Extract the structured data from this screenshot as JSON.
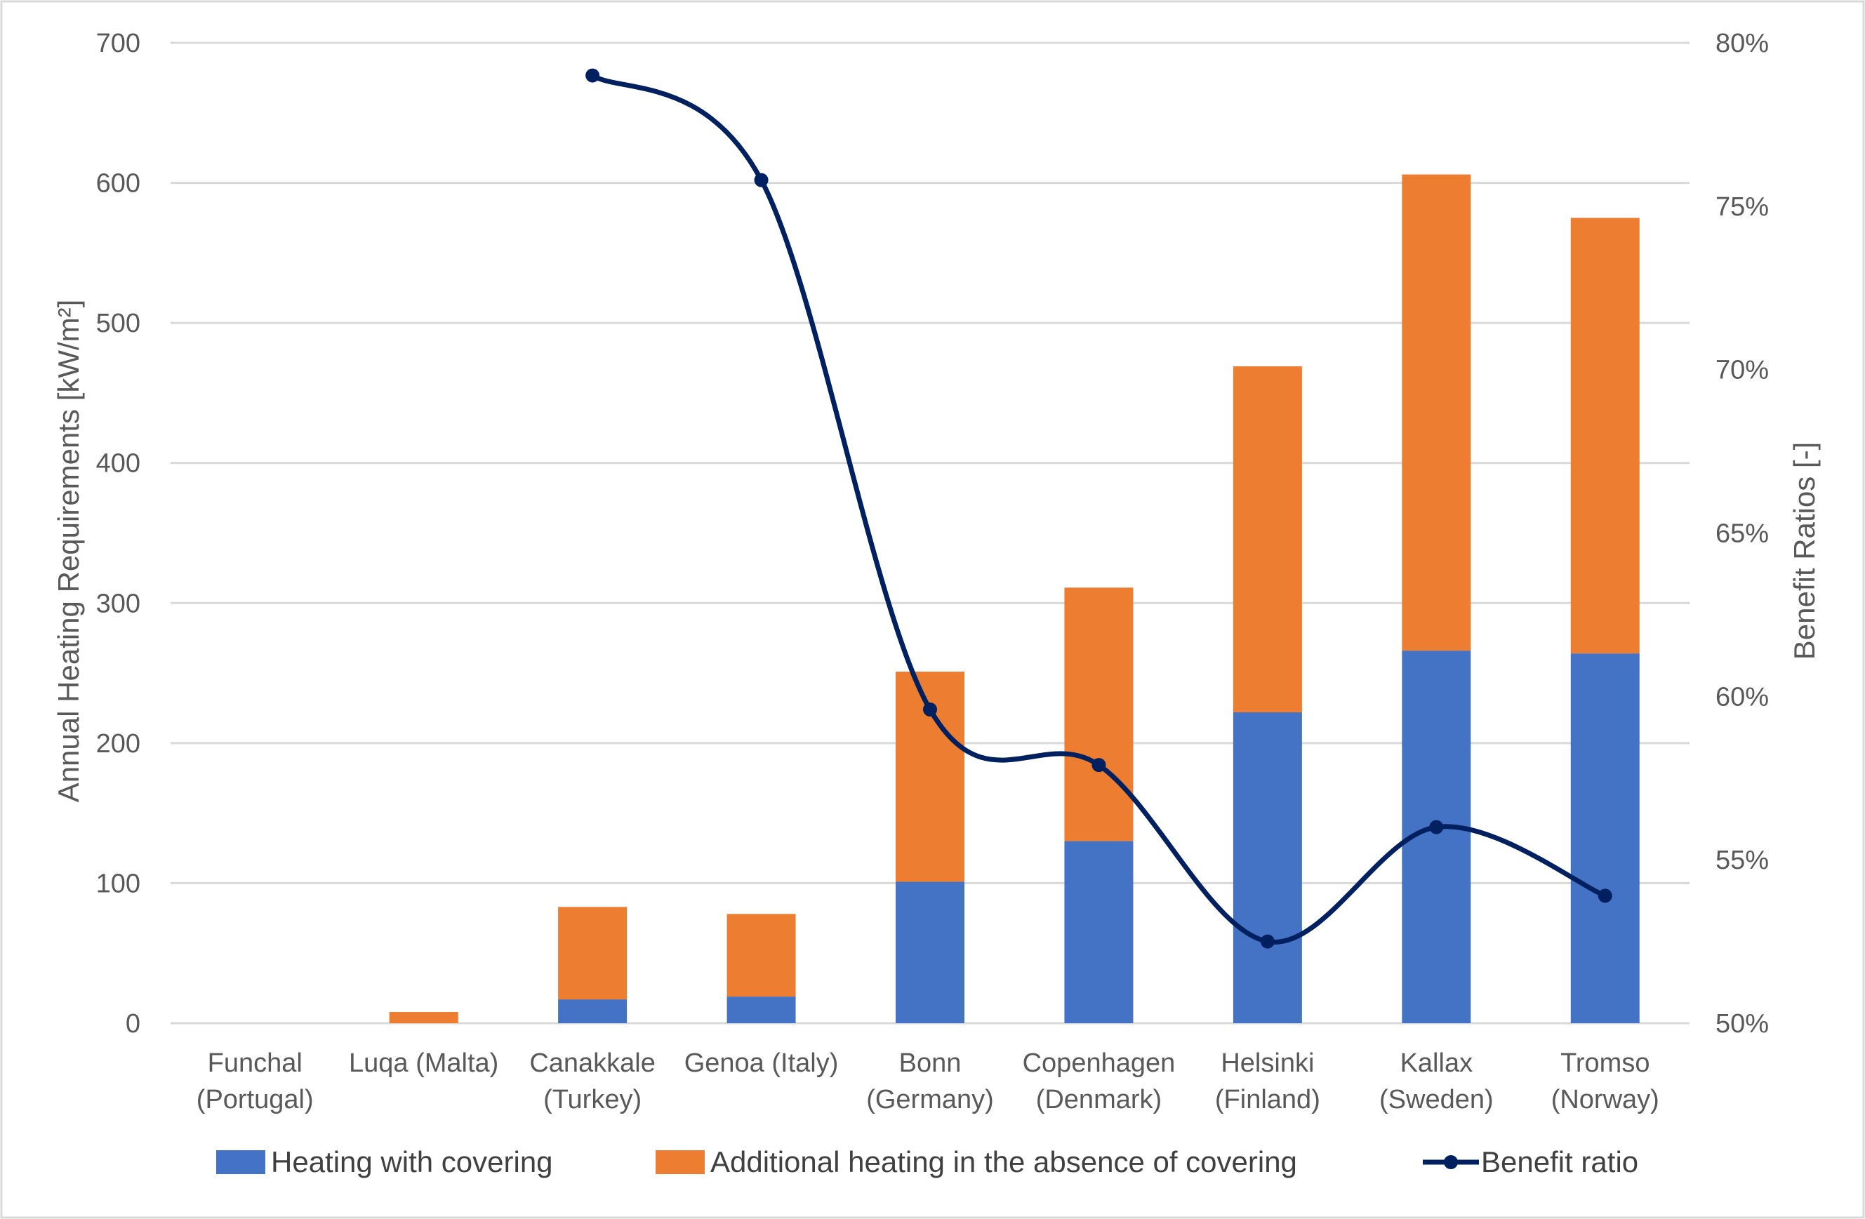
{
  "chart_data": {
    "type": "bar",
    "stacked": true,
    "categories": [
      [
        "Funchal",
        "(Portugal)"
      ],
      [
        "Luqa (Malta)"
      ],
      [
        "Canakkale",
        "(Turkey)"
      ],
      [
        "Genoa (Italy)"
      ],
      [
        "Bonn",
        "(Germany)"
      ],
      [
        "Copenhagen",
        "(Denmark)"
      ],
      [
        "Helsinki",
        "(Finland)"
      ],
      [
        "Kallax",
        "(Sweden)"
      ],
      [
        "Tromso",
        "(Norway)"
      ]
    ],
    "series": [
      {
        "name": "Heating with covering",
        "color": "#4472C4",
        "axis": "left",
        "values": [
          0,
          0,
          17,
          19,
          101,
          130,
          222,
          266,
          264
        ]
      },
      {
        "name": "Additional heating in the absence of covering",
        "color": "#ED7D31",
        "axis": "left",
        "values": [
          0,
          8,
          66,
          59,
          150,
          181,
          247,
          340,
          311
        ]
      },
      {
        "name": "Benefit ratio",
        "color": "#002060",
        "axis": "right",
        "type": "line",
        "smooth": true,
        "values": [
          null,
          null,
          0.79,
          0.758,
          0.596,
          0.579,
          0.525,
          0.56,
          0.539
        ]
      }
    ],
    "ylabel_left": "Annual Heating Requirements [kW/m²]",
    "ylabel_right": "Benefit Ratios [-]",
    "ylim_left": [
      0,
      700
    ],
    "yticks_left": [
      "0",
      "100",
      "200",
      "300",
      "400",
      "500",
      "600",
      "700"
    ],
    "ylim_right": [
      0.5,
      0.8
    ],
    "yticks_right": [
      "50%",
      "55%",
      "60%",
      "65%",
      "70%",
      "75%",
      "80%"
    ],
    "grid": true,
    "legend": "bottom"
  }
}
